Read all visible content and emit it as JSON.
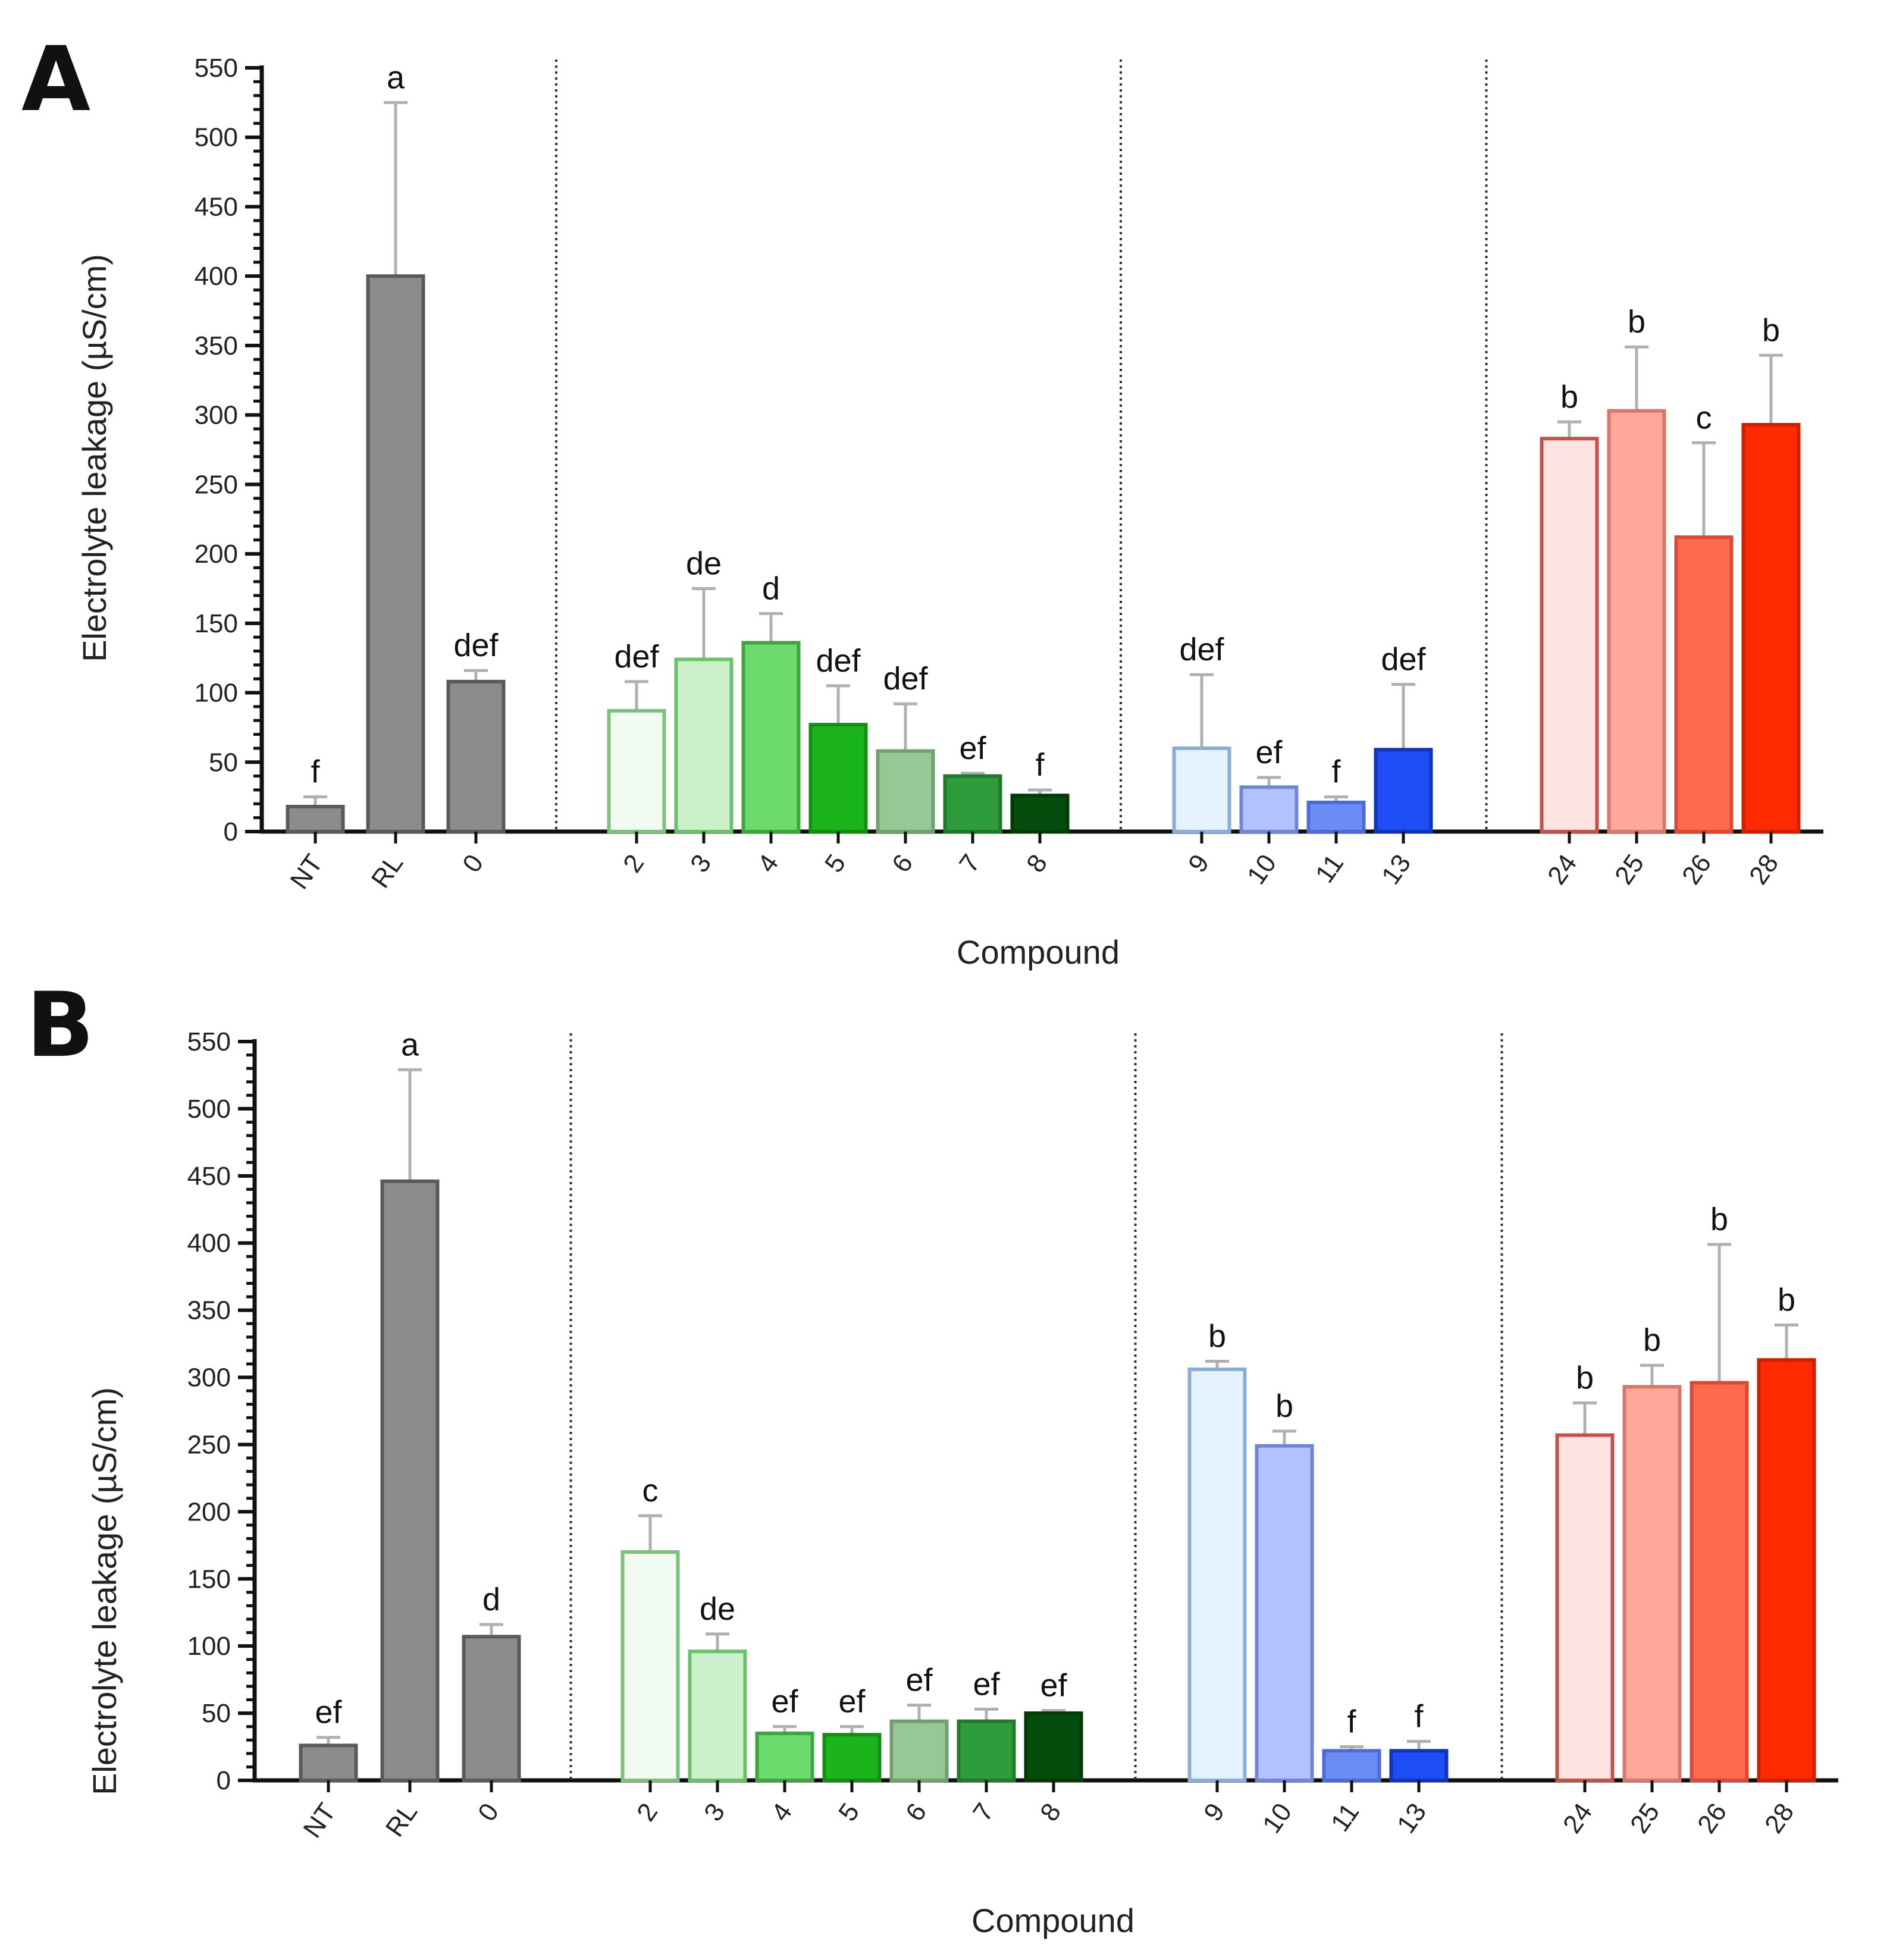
{
  "chart_data": [
    {
      "panel_label": "A",
      "type": "bar",
      "xlabel": "Compound",
      "ylabel": "Electrolyte leakage (µS/cm)",
      "ylim": [
        0,
        550
      ],
      "yticks": [
        0,
        50,
        100,
        150,
        200,
        250,
        300,
        350,
        400,
        450,
        500,
        550
      ],
      "separators_after_index": [
        2,
        9,
        13
      ],
      "categories": [
        "NT",
        "RL",
        "0",
        "2",
        "3",
        "4",
        "5",
        "6",
        "7",
        "8",
        "9",
        "10",
        "11",
        "13",
        "24",
        "25",
        "26",
        "28"
      ],
      "values": [
        18,
        400,
        108,
        87,
        124,
        136,
        77,
        58,
        40,
        26,
        60,
        32,
        21,
        59,
        283,
        303,
        212,
        293
      ],
      "errors": [
        7,
        125,
        8,
        21,
        51,
        21,
        28,
        34,
        2,
        4,
        53,
        7,
        4,
        47,
        12,
        46,
        68,
        50
      ],
      "significance": [
        "f",
        "a",
        "def",
        "def",
        "de",
        "d",
        "def",
        "def",
        "ef",
        "f",
        "def",
        "ef",
        "f",
        "def",
        "b",
        "b",
        "c",
        "b"
      ],
      "fill_colors": [
        "#8c8c8c",
        "#8c8c8c",
        "#8c8c8c",
        "#f2fbf1",
        "#ccf0cb",
        "#6cda6c",
        "#1cb41c",
        "#95c895",
        "#2e9c3a",
        "#054d0c",
        "#e6f2ff",
        "#b3c2ff",
        "#6b8df5",
        "#1e4cf5",
        "#ffe3e3",
        "#ffa89a",
        "#ff6a4f",
        "#ff2a00"
      ],
      "edge_colors": [
        "#5a5a5a",
        "#5a5a5a",
        "#5a5a5a",
        "#7cc07c",
        "#6cc06c",
        "#3fa53f",
        "#139013",
        "#6fa06f",
        "#217a2a",
        "#033a08",
        "#8aaed8",
        "#6f86d8",
        "#4c6ad8",
        "#1234b8",
        "#c2514a",
        "#d8776a",
        "#d84a36",
        "#cc2000"
      ]
    },
    {
      "panel_label": "B",
      "type": "bar",
      "xlabel": "Compound",
      "ylabel": "Electrolyte leakage (µS/cm)",
      "ylim": [
        0,
        550
      ],
      "yticks": [
        0,
        50,
        100,
        150,
        200,
        250,
        300,
        350,
        400,
        450,
        500,
        550
      ],
      "separators_after_index": [
        2,
        9,
        13
      ],
      "categories": [
        "NT",
        "RL",
        "0",
        "2",
        "3",
        "4",
        "5",
        "6",
        "7",
        "8",
        "9",
        "10",
        "11",
        "13",
        "24",
        "25",
        "26",
        "28"
      ],
      "values": [
        26,
        446,
        107,
        170,
        96,
        35,
        34,
        44,
        44,
        50,
        306,
        249,
        22,
        22,
        257,
        293,
        296,
        313
      ],
      "errors": [
        6,
        83,
        9,
        27,
        13,
        5,
        6,
        12,
        9,
        2,
        6,
        11,
        3,
        7,
        24,
        16,
        103,
        26
      ],
      "significance": [
        "ef",
        "a",
        "d",
        "c",
        "de",
        "ef",
        "ef",
        "ef",
        "ef",
        "ef",
        "b",
        "b",
        "f",
        "f",
        "b",
        "b",
        "b",
        "b"
      ],
      "fill_colors": [
        "#8c8c8c",
        "#8c8c8c",
        "#8c8c8c",
        "#f2fbf1",
        "#ccf0cb",
        "#6cda6c",
        "#1cb41c",
        "#95c895",
        "#2e9c3a",
        "#054d0c",
        "#e6f2ff",
        "#b3c2ff",
        "#6b8df5",
        "#1e4cf5",
        "#ffe3e3",
        "#ffa89a",
        "#ff6a4f",
        "#ff2a00"
      ],
      "edge_colors": [
        "#5a5a5a",
        "#5a5a5a",
        "#5a5a5a",
        "#7cc07c",
        "#6cc06c",
        "#3fa53f",
        "#139013",
        "#6fa06f",
        "#217a2a",
        "#033a08",
        "#8aaed8",
        "#6f86d8",
        "#4c6ad8",
        "#1234b8",
        "#c2514a",
        "#d8776a",
        "#d84a36",
        "#cc2000"
      ]
    }
  ]
}
